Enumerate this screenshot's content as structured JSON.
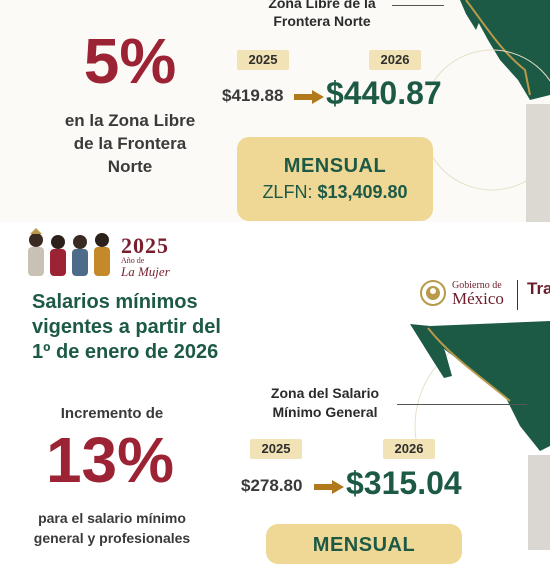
{
  "top": {
    "zone_label_line1": "Zona Libre de la",
    "zone_label_line2": "Frontera Norte",
    "percent": "5%",
    "caption_line1": "en la Zona Libre",
    "caption_line2": "de la Frontera",
    "caption_line3": "Norte",
    "year_old": "2025",
    "year_new": "2026",
    "old_value": "$419.88",
    "new_value": "$440.87",
    "monthly_title": "MENSUAL",
    "monthly_prefix": "ZLFN: ",
    "monthly_value": "$13,409.80"
  },
  "header": {
    "mujer_year": "2025",
    "mujer_sub_line1": "Año de",
    "mujer_sub_line2": "La Mujer",
    "gob_line1": "Gobierno de",
    "gob_line2": "México",
    "ministry_partial": "Tra",
    "headline_line1": "Salarios mínimos",
    "headline_line2": "vigentes a partir del",
    "headline_line3": "1º de enero de 2026"
  },
  "bottom": {
    "zone_label_line1": "Zona del Salario",
    "zone_label_line2": "Mínimo General",
    "increase_label": "Incremento de",
    "percent": "13%",
    "year_old": "2025",
    "year_new": "2026",
    "old_value": "$278.80",
    "new_value": "$315.04",
    "caption_line1": "para el salario mínimo",
    "caption_line2": "general y profesionales",
    "monthly_title": "MENSUAL"
  },
  "colors": {
    "accent_red": "#9b2333",
    "accent_green": "#1d5a45",
    "gold_box": "#efd796",
    "year_chip": "#f1e3b5"
  },
  "icons": [
    "mexico-map-icon",
    "arrow-right-icon",
    "women-illustration-icon",
    "coat-of-arms-icon"
  ]
}
